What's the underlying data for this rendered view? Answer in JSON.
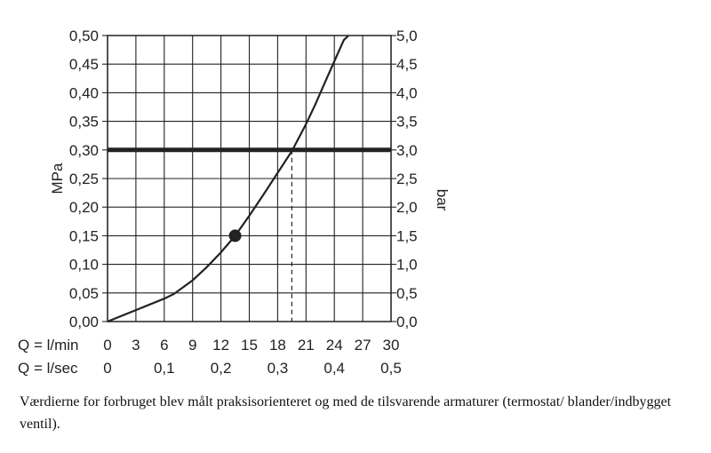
{
  "chart_data": {
    "type": "line",
    "y_left": {
      "label": "MPa",
      "ticks": [
        "0,00",
        "0,05",
        "0,10",
        "0,15",
        "0,20",
        "0,25",
        "0,30",
        "0,35",
        "0,40",
        "0,45",
        "0,50"
      ],
      "range": [
        0,
        0.5
      ]
    },
    "y_right": {
      "label": "bar",
      "ticks": [
        "0,0",
        "0,5",
        "1,0",
        "1,5",
        "2,0",
        "2,5",
        "3,0",
        "3,5",
        "4,0",
        "4,5",
        "5,0"
      ],
      "range": [
        0,
        5
      ]
    },
    "x_lmin": {
      "label": "Q = l/min",
      "ticks": [
        "0",
        "3",
        "6",
        "9",
        "12",
        "15",
        "18",
        "21",
        "24",
        "27",
        "30"
      ],
      "range": [
        0,
        30
      ]
    },
    "x_lsec": {
      "label": "Q = l/sec",
      "ticks": [
        "0",
        "0,1",
        "0,2",
        "0,3",
        "0,4",
        "0,5"
      ]
    },
    "grid": true,
    "series": [
      {
        "x": [
          0,
          3,
          6,
          7,
          9,
          10.5,
          12,
          13.5,
          15,
          16.5,
          18,
          19.5,
          21,
          22,
          23,
          24,
          25,
          25.5
        ],
        "y": [
          0,
          0.02,
          0.04,
          0.048,
          0.072,
          0.095,
          0.121,
          0.15,
          0.185,
          0.222,
          0.26,
          0.298,
          0.345,
          0.38,
          0.418,
          0.455,
          0.492,
          0.5
        ],
        "color": "#222222"
      }
    ],
    "reference_line": {
      "y": 0.3,
      "color": "#222222"
    },
    "marker": {
      "x": 13.5,
      "y": 0.15
    },
    "intersection": {
      "x": 19.5,
      "y": 0.3
    }
  },
  "caption": "Værdierne for forbruget blev målt praksisorienteret og med de tilsvarende armaturer (termostat/ blander/indbygget ventil)."
}
